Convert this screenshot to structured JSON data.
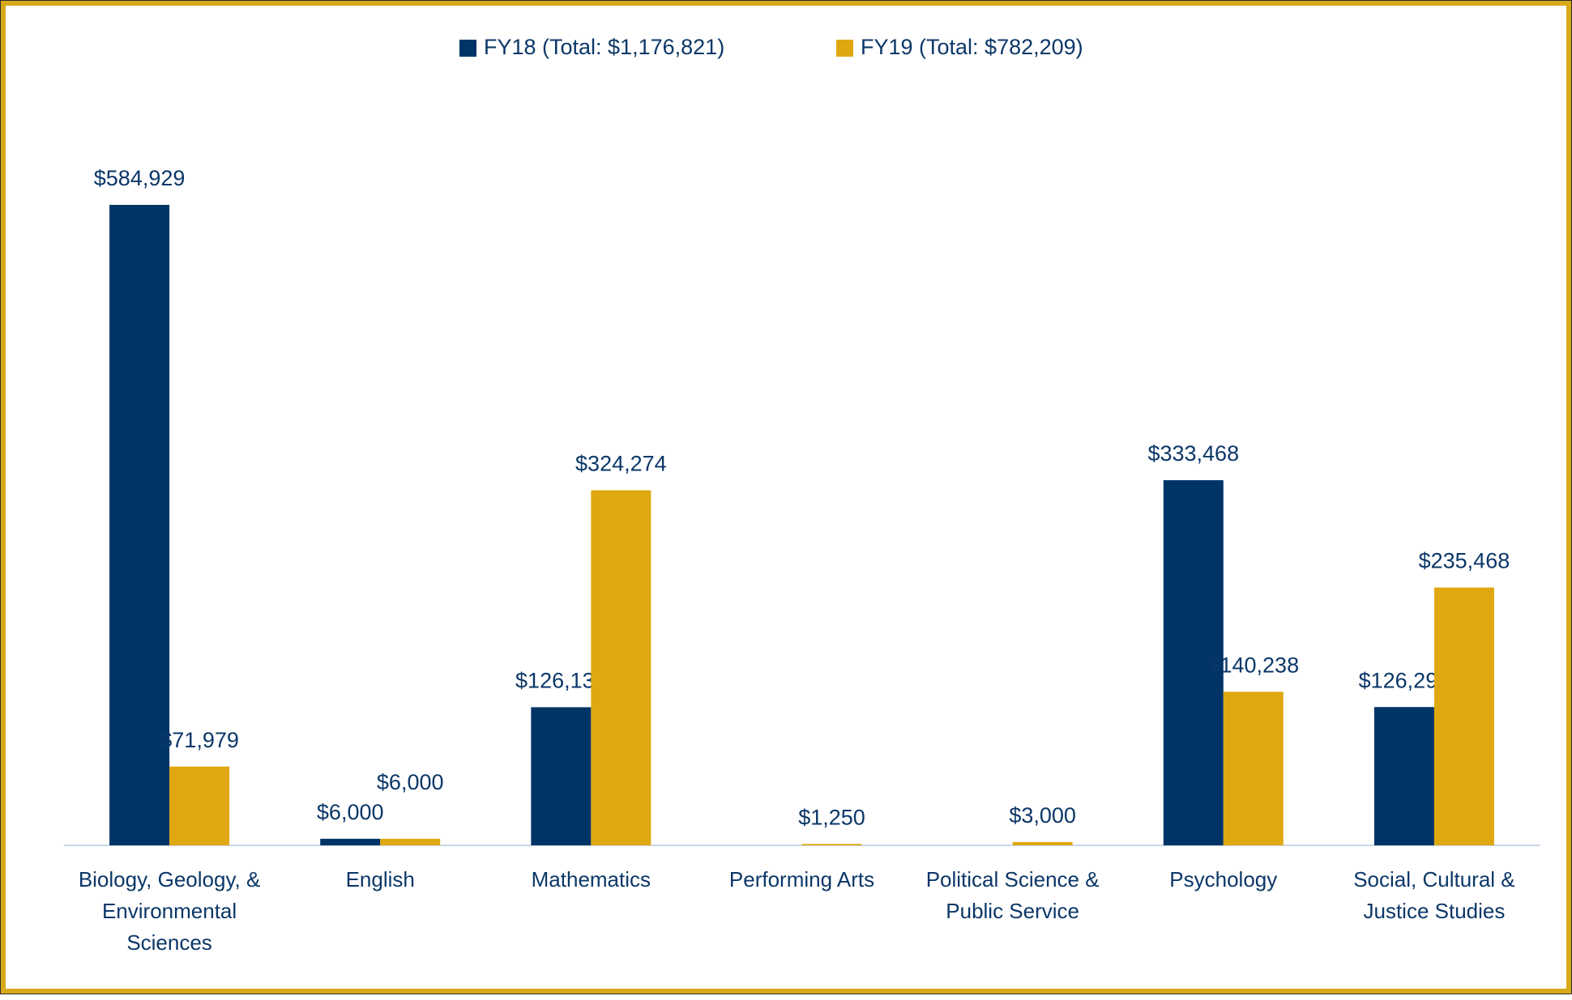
{
  "chart_data": {
    "type": "bar",
    "categories": [
      "Biology, Geology, & Environmental Sciences",
      "English",
      "Mathematics",
      "Performing Arts",
      "Political Science & Public Service",
      "Psychology",
      "Social, Cultural & Justice Studies"
    ],
    "series": [
      {
        "name": "FY18 (Total: $1,176,821)",
        "color": "#003466",
        "values": [
          584929,
          6000,
          126130,
          null,
          null,
          333468,
          126294
        ],
        "value_labels": [
          "$584,929",
          "$6,000",
          "$126,130",
          null,
          null,
          "$333,468",
          "$126,294"
        ]
      },
      {
        "name": "FY19 (Total: $782,209)",
        "color": "#e0a810",
        "values": [
          71979,
          6000,
          324274,
          1250,
          3000,
          140238,
          235468
        ],
        "value_labels": [
          "$71,979",
          "$6,000",
          "$324,274",
          "$1,250",
          "$3,000",
          "$140,238",
          "$235,468"
        ]
      }
    ]
  }
}
